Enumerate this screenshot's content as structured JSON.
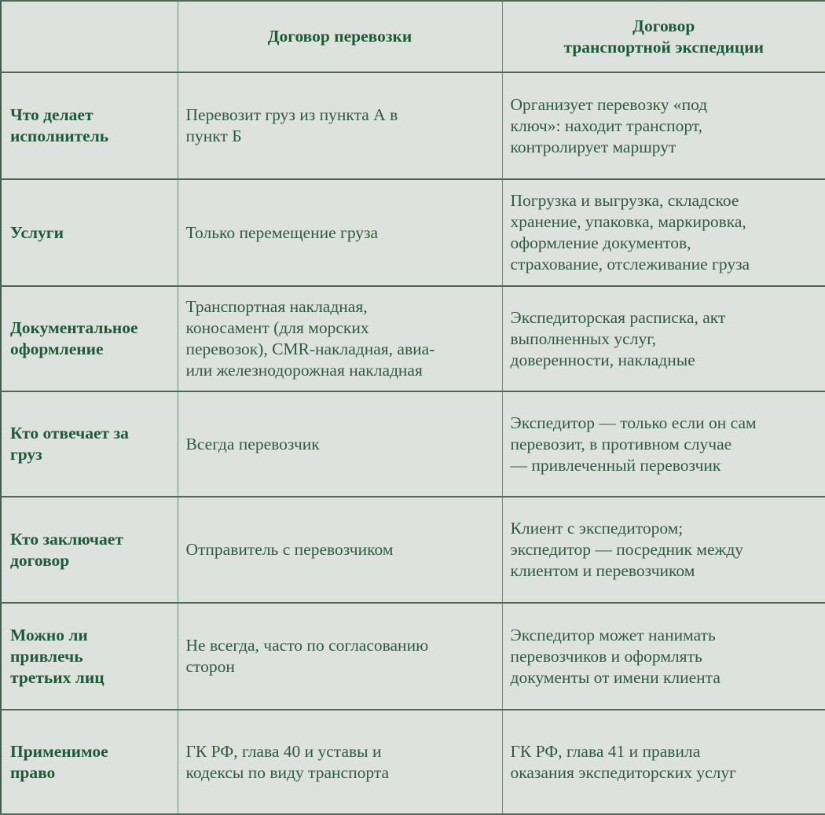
{
  "colors": {
    "background": "#dde2de",
    "heading_text": "#1d5a3a",
    "body_text": "#2f5b45",
    "horizontal_grid": "#4d6856",
    "vertical_grid": "#73897b",
    "outer_border": "#3f5e4b"
  },
  "table": {
    "header": {
      "col1": "",
      "col2": "Договор перевозки",
      "col3": "Договор\nтранспортной экспедиции"
    },
    "rows": [
      {
        "label": "Что делает\nисполнитель",
        "carriage": "Перевозит груз из пункта А в\nпункт Б",
        "forwarding": "Организует перевозку «под\nключ»: находит транспорт,\nконтролирует маршрут"
      },
      {
        "label": "Услуги",
        "carriage": "Только перемещение груза",
        "forwarding": "Погрузка и выгрузка, складское\nхранение, упаковка, маркировка,\nоформление документов,\nстрахование, отслеживание груза"
      },
      {
        "label": "Документальное\nоформление",
        "carriage": "Транспортная накладная,\nконосамент (для морских\nперевозок), CMR-накладная, авиа-\nили железнодорожная накладная",
        "forwarding": "Экспедиторская расписка, акт\nвыполненных услуг,\nдоверенности, накладные"
      },
      {
        "label": "Кто отвечает за\nгруз",
        "carriage": "Всегда перевозчик",
        "forwarding": "Экспедитор — только если он сам\nперевозит, в противном случае\n— привлеченный перевозчик"
      },
      {
        "label": "Кто заключает\nдоговор",
        "carriage": "Отправитель с перевозчиком",
        "forwarding": "Клиент с экспедитором;\nэкспедитор — посредник между\nклиентом и перевозчиком"
      },
      {
        "label": "Можно ли\nпривлечь\nтретьих лиц",
        "carriage": "Не всегда, часто по согласованию\nсторон",
        "forwarding": "Экспедитор может нанимать\nперевозчиков и оформлять\nдокументы от имени клиента"
      },
      {
        "label": "Применимое\nправо",
        "carriage": "ГК РФ, глава 40 и уставы и\nкодексы по виду транспорта",
        "forwarding": "ГК РФ, глава 41 и правила\nоказания экспедиторских услуг"
      }
    ]
  }
}
